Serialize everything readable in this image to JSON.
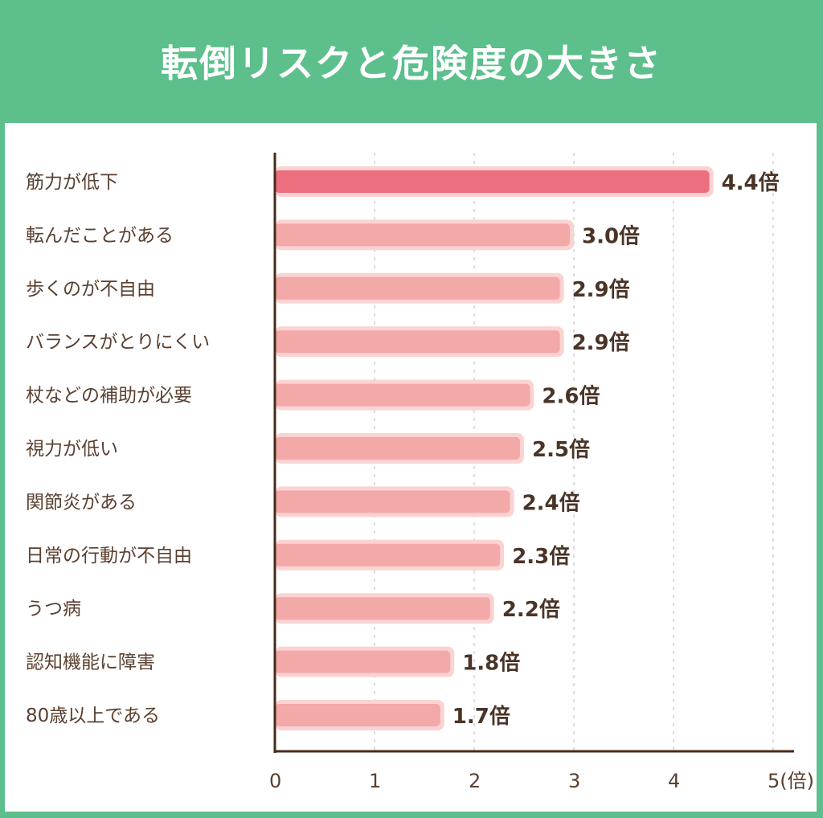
{
  "chart_data": {
    "type": "bar",
    "orientation": "horizontal",
    "title": "転倒リスクと危険度の大きさ",
    "categories": [
      "筋力が低下",
      "転んだことがある",
      "歩くのが不自由",
      "バランスがとりにくい",
      "杖などの補助が必要",
      "視力が低い",
      "関節炎がある",
      "日常の行動が不自由",
      "うつ病",
      "認知機能に障害",
      "80歳以上である"
    ],
    "values": [
      4.4,
      3.0,
      2.9,
      2.9,
      2.6,
      2.5,
      2.4,
      2.3,
      2.2,
      1.8,
      1.7
    ],
    "value_labels": [
      "4.4倍",
      "3.0倍",
      "2.9倍",
      "2.9倍",
      "2.6倍",
      "2.5倍",
      "2.4倍",
      "2.3倍",
      "2.2倍",
      "1.8倍",
      "1.7倍"
    ],
    "xticks": [
      "0",
      "1",
      "2",
      "3",
      "4",
      "5(倍)"
    ],
    "xlim": [
      0,
      5
    ],
    "grid": "vertical dashed",
    "colors": {
      "highlight": "#ec6f80",
      "bar": "#f2a9a8",
      "bar_border": "#fbd3d2",
      "axis": "#4a2a18",
      "header": "#5cbf8c"
    }
  }
}
